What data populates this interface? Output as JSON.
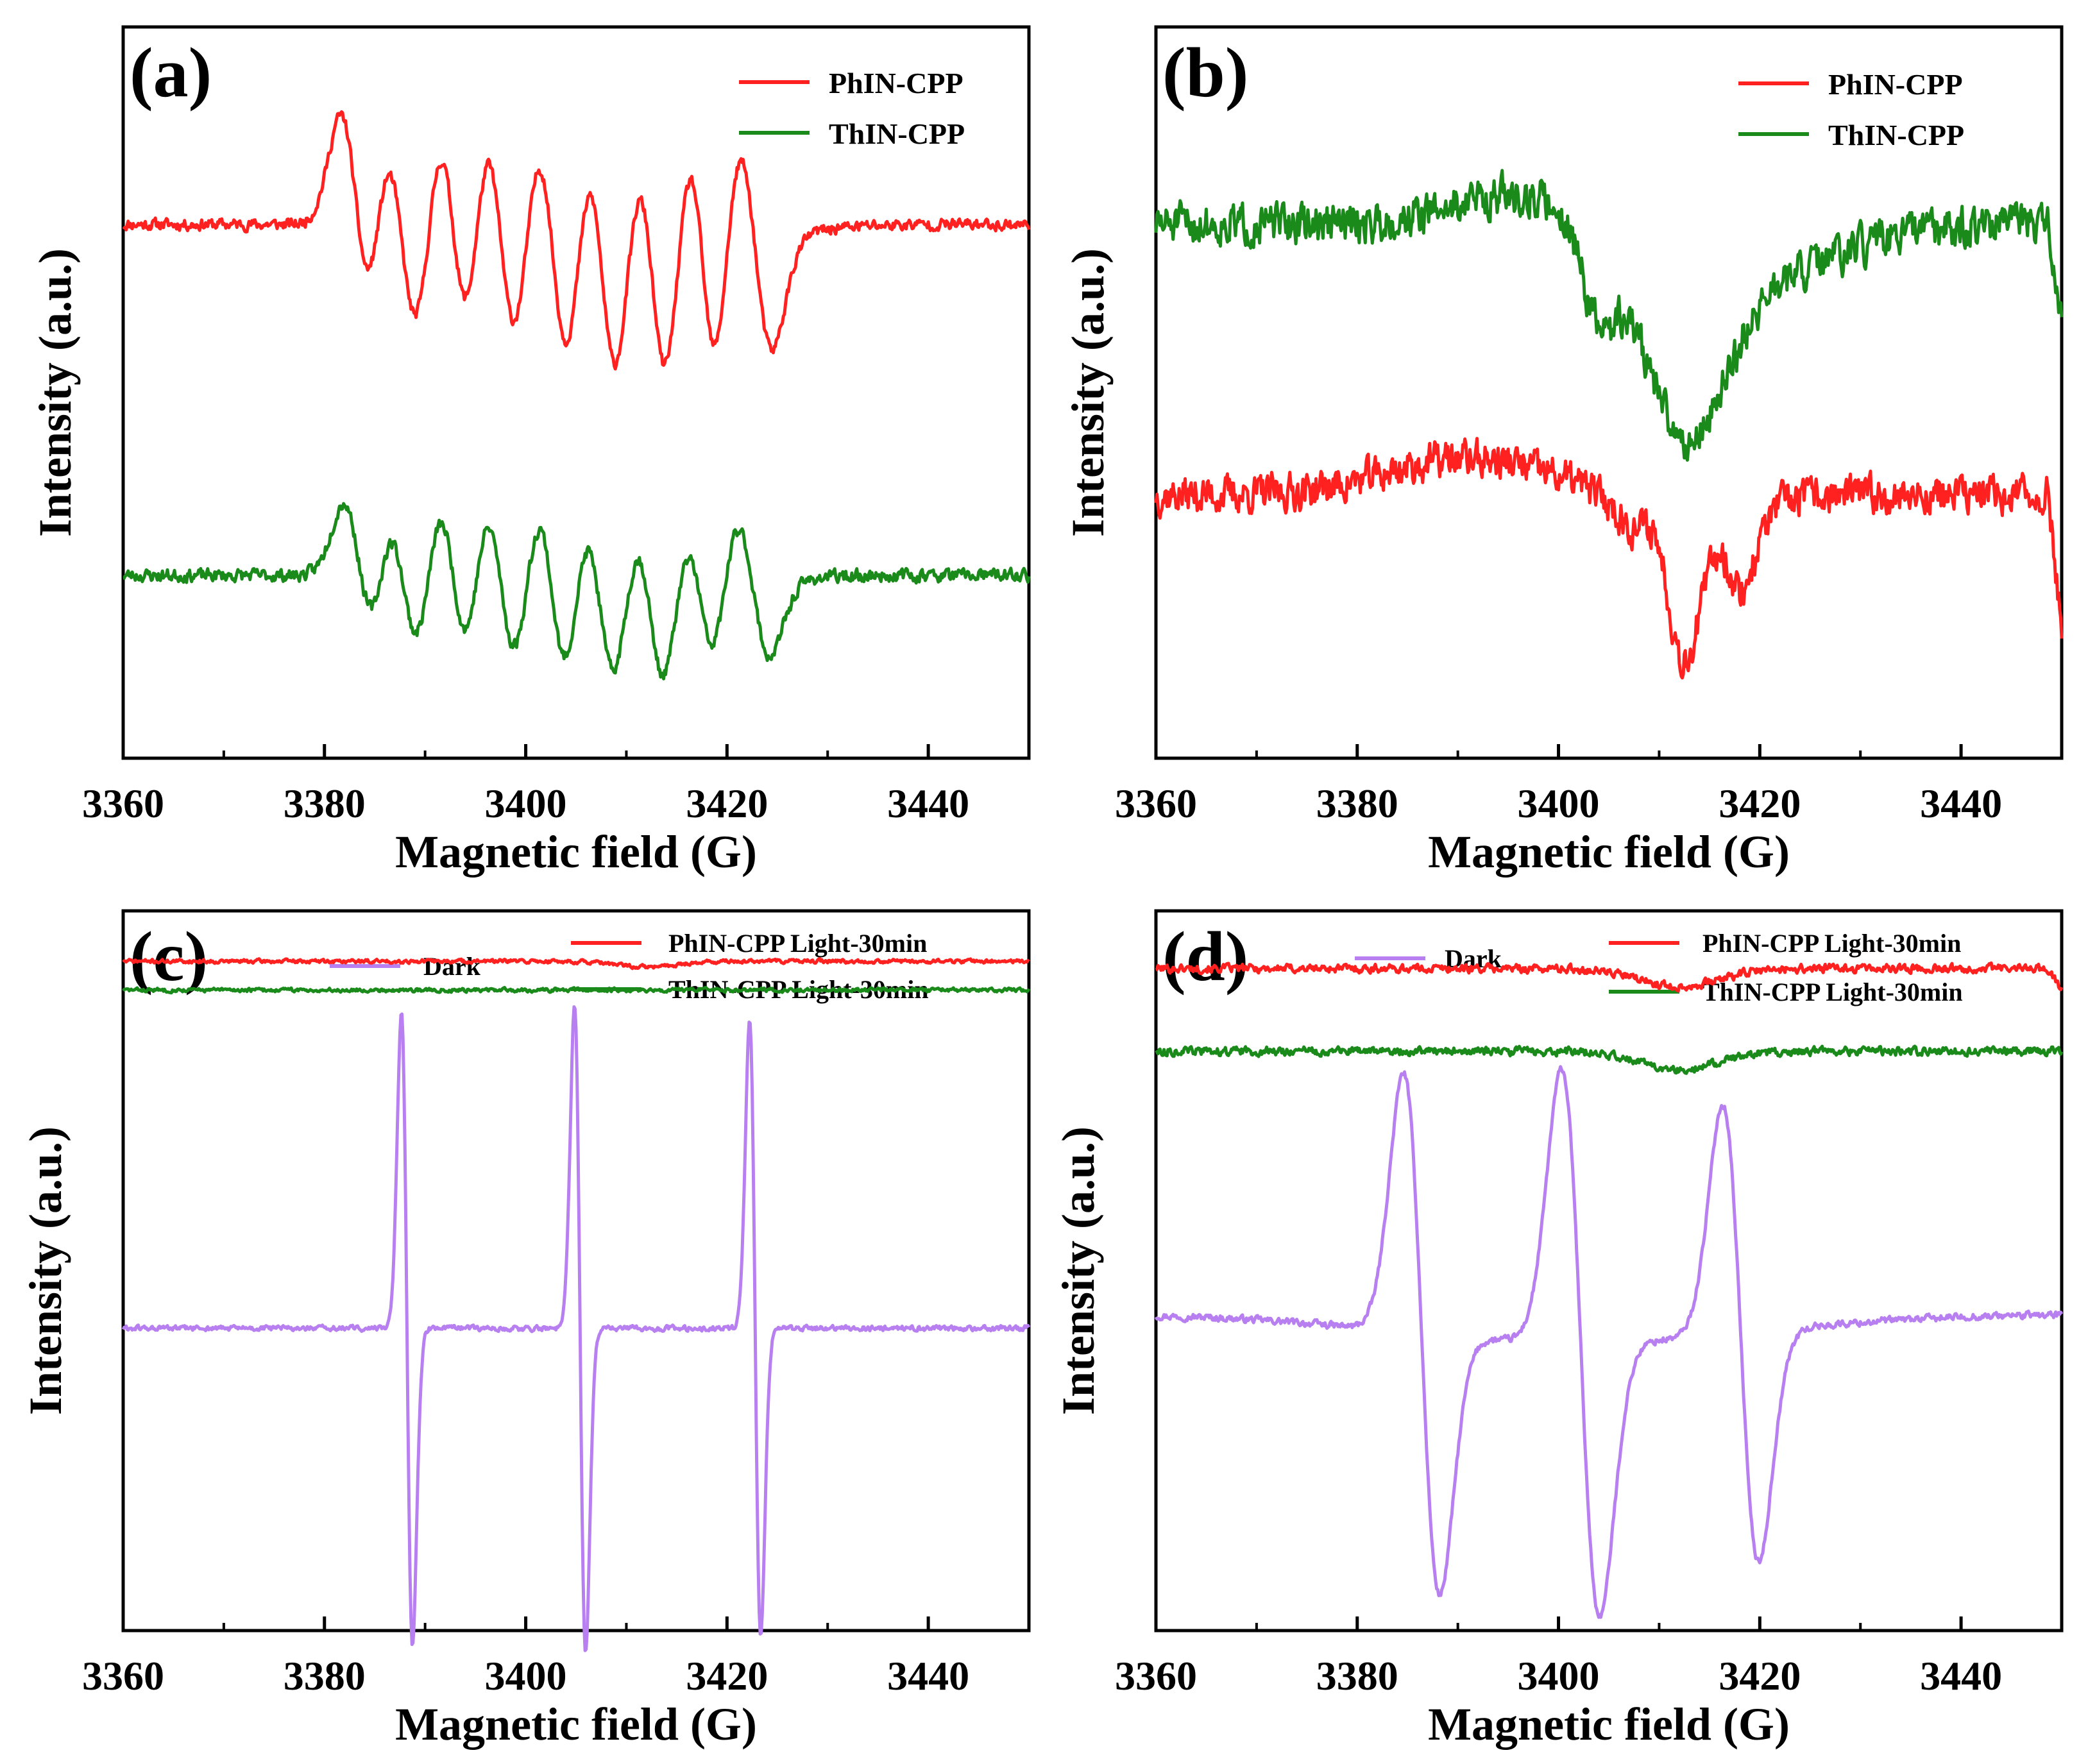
{
  "figure": {
    "description_panels": [
      "a",
      "b",
      "c",
      "d"
    ]
  },
  "chart_data": [
    {
      "panel": "a",
      "panel_label": "(a)",
      "type": "line",
      "xlabel": "Magnetic field  (G)",
      "ylabel": "Intensity (a.u.)",
      "xlim": [
        3360,
        3450
      ],
      "ylim": [
        0,
        100
      ],
      "xticks": [
        3360,
        3380,
        3400,
        3420,
        3440
      ],
      "xtick_labels": [
        "3360",
        "3380",
        "3400",
        "3420",
        "3440"
      ],
      "legend_position": "top-right",
      "series": [
        {
          "name": "PhIN-CPP",
          "color": "#ff2020",
          "baseline": 73,
          "amplitude": 0.82,
          "noise": 0.9,
          "seed": 11,
          "tail": 0,
          "components": [
            {
              "kind": "deriv",
              "center": 3383.2,
              "width": 1.6,
              "amp": 18
            },
            {
              "kind": "deriv",
              "center": 3387.6,
              "width": 1.7,
              "amp": 18
            },
            {
              "kind": "deriv",
              "center": 3392.8,
              "width": 1.5,
              "amp": 16
            },
            {
              "kind": "deriv",
              "center": 3397.5,
              "width": 1.5,
              "amp": 16
            },
            {
              "kind": "deriv",
              "center": 3402.7,
              "width": 1.5,
              "amp": 16
            },
            {
              "kind": "deriv",
              "center": 3407.6,
              "width": 1.4,
              "amp": 16
            },
            {
              "kind": "deriv",
              "center": 3412.6,
              "width": 1.4,
              "amp": 16
            },
            {
              "kind": "deriv",
              "center": 3417.6,
              "width": 1.4,
              "amp": 18
            },
            {
              "kind": "deriv",
              "center": 3422.8,
              "width": 1.7,
              "amp": 18
            },
            {
              "kind": "gauss",
              "center": 3412,
              "width": 8,
              "amp": -10
            }
          ]
        },
        {
          "name": "ThIN-CPP",
          "color": "#1a8a1a",
          "baseline": 25,
          "amplitude": 0.82,
          "noise": 1.0,
          "seed": 23,
          "tail": 0,
          "components": [
            {
              "kind": "deriv",
              "center": 3383.5,
              "width": 1.6,
              "amp": 12
            },
            {
              "kind": "deriv",
              "center": 3387.8,
              "width": 1.6,
              "amp": 12
            },
            {
              "kind": "deriv",
              "center": 3392.8,
              "width": 1.5,
              "amp": 12
            },
            {
              "kind": "deriv",
              "center": 3397.5,
              "width": 1.5,
              "amp": 12
            },
            {
              "kind": "deriv",
              "center": 3402.6,
              "width": 1.4,
              "amp": 12
            },
            {
              "kind": "deriv",
              "center": 3407.4,
              "width": 1.4,
              "amp": 11
            },
            {
              "kind": "deriv",
              "center": 3412.4,
              "width": 1.4,
              "amp": 11
            },
            {
              "kind": "deriv",
              "center": 3417.4,
              "width": 1.4,
              "amp": 10
            },
            {
              "kind": "deriv",
              "center": 3422.6,
              "width": 1.7,
              "amp": 12
            },
            {
              "kind": "gauss",
              "center": 3412,
              "width": 7,
              "amp": -7
            }
          ]
        }
      ]
    },
    {
      "panel": "b",
      "panel_label": "(b)",
      "type": "line",
      "xlabel": "Magnetic field  (G)",
      "ylabel": "Intensity (a.u.)",
      "xlim": [
        3360,
        3450
      ],
      "ylim": [
        0,
        100
      ],
      "xticks": [
        3360,
        3380,
        3400,
        3420,
        3440
      ],
      "xtick_labels": [
        "3360",
        "3380",
        "3400",
        "3420",
        "3440"
      ],
      "legend_position": "top-right",
      "series": [
        {
          "name": "PhIN-CPP",
          "color": "#ff2020",
          "baseline": 36,
          "amplitude": 1.0,
          "noise": 2.4,
          "seed": 37,
          "tail": 18,
          "components": [
            {
              "kind": "gauss",
              "center": 3391,
              "width": 8,
              "amp": 5
            },
            {
              "kind": "gauss",
              "center": 3413,
              "width": 4,
              "amp": -17
            },
            {
              "kind": "deriv",
              "center": 3411,
              "width": 1.5,
              "amp": 6
            },
            {
              "kind": "deriv",
              "center": 3417,
              "width": 1.5,
              "amp": 6
            }
          ]
        },
        {
          "name": "ThIN-CPP",
          "color": "#1a8a1a",
          "baseline": 73,
          "amplitude": 1.0,
          "noise": 2.6,
          "seed": 51,
          "tail": 14,
          "components": [
            {
              "kind": "gauss",
              "center": 3412.5,
              "width": 4,
              "amp": -25
            },
            {
              "kind": "gauss",
              "center": 3404,
              "width": 1.6,
              "amp": -12
            },
            {
              "kind": "gauss",
              "center": 3395,
              "width": 6,
              "amp": 4
            },
            {
              "kind": "gauss",
              "center": 3420,
              "width": 8,
              "amp": -7
            }
          ]
        }
      ]
    },
    {
      "panel": "c",
      "panel_label": "(c)",
      "type": "line",
      "xlabel": "Magnetic field  (G)",
      "ylabel": "Intensity (a.u.)",
      "xlim": [
        3360,
        3450
      ],
      "ylim": [
        0,
        100
      ],
      "xticks": [
        3360,
        3380,
        3400,
        3420,
        3440
      ],
      "xtick_labels": [
        "3360",
        "3380",
        "3400",
        "3420",
        "3440"
      ],
      "legend_position": "top",
      "series": [
        {
          "name": "Dark",
          "color": "#b77fef",
          "baseline": 42,
          "amplitude": 1.0,
          "noise": 0.35,
          "seed": 61,
          "tail": 0,
          "components": [
            {
              "kind": "deriv",
              "center": 3388.2,
              "width": 0.55,
              "amp": 44
            },
            {
              "kind": "deriv",
              "center": 3405.4,
              "width": 0.55,
              "amp": 45
            },
            {
              "kind": "deriv",
              "center": 3422.8,
              "width": 0.55,
              "amp": 43
            }
          ]
        },
        {
          "name": "PhIN-CPP Light-30min",
          "color": "#ff2020",
          "baseline": 93,
          "amplitude": 1.0,
          "noise": 0.25,
          "seed": 71,
          "tail": 0,
          "components": [
            {
              "kind": "gauss",
              "center": 3412,
              "width": 3,
              "amp": -0.8
            }
          ]
        },
        {
          "name": "ThIN-CPP Light-30min",
          "color": "#1a8a1a",
          "baseline": 89,
          "amplitude": 1.0,
          "noise": 0.25,
          "seed": 83,
          "tail": 0,
          "components": []
        }
      ]
    },
    {
      "panel": "d",
      "panel_label": "(d)",
      "type": "line",
      "xlabel": "Magnetic field  (G)",
      "ylabel": "Intensity (a.u.)",
      "xlim": [
        3360,
        3450
      ],
      "ylim": [
        0,
        100
      ],
      "xticks": [
        3360,
        3380,
        3400,
        3420,
        3440
      ],
      "xtick_labels": [
        "3360",
        "3380",
        "3400",
        "3420",
        "3440"
      ],
      "legend_position": "top",
      "series": [
        {
          "name": "Dark",
          "color": "#b77fef",
          "baseline": 44,
          "amplitude": 1.0,
          "noise": 0.45,
          "seed": 97,
          "tail": 0,
          "components": [
            {
              "kind": "deriv",
              "center": 3386.4,
              "width": 1.8,
              "amp": 36
            },
            {
              "kind": "deriv",
              "center": 3402.2,
              "width": 1.9,
              "amp": 38
            },
            {
              "kind": "deriv",
              "center": 3418.1,
              "width": 1.8,
              "amp": 32
            },
            {
              "kind": "gauss",
              "center": 3402,
              "width": 18,
              "amp": -4
            }
          ]
        },
        {
          "name": "PhIN-CPP Light-30min",
          "color": "#ff2020",
          "baseline": 92,
          "amplitude": 1.0,
          "noise": 0.55,
          "seed": 101,
          "tail": 3,
          "components": [
            {
              "kind": "gauss",
              "center": 3412,
              "width": 4,
              "amp": -2.5
            }
          ]
        },
        {
          "name": "ThIN-CPP Light-30min",
          "color": "#1a8a1a",
          "baseline": 80.5,
          "amplitude": 1.0,
          "noise": 0.55,
          "seed": 113,
          "tail": 0,
          "components": [
            {
              "kind": "gauss",
              "center": 3412,
              "width": 4,
              "amp": -2.5
            }
          ]
        }
      ]
    }
  ]
}
